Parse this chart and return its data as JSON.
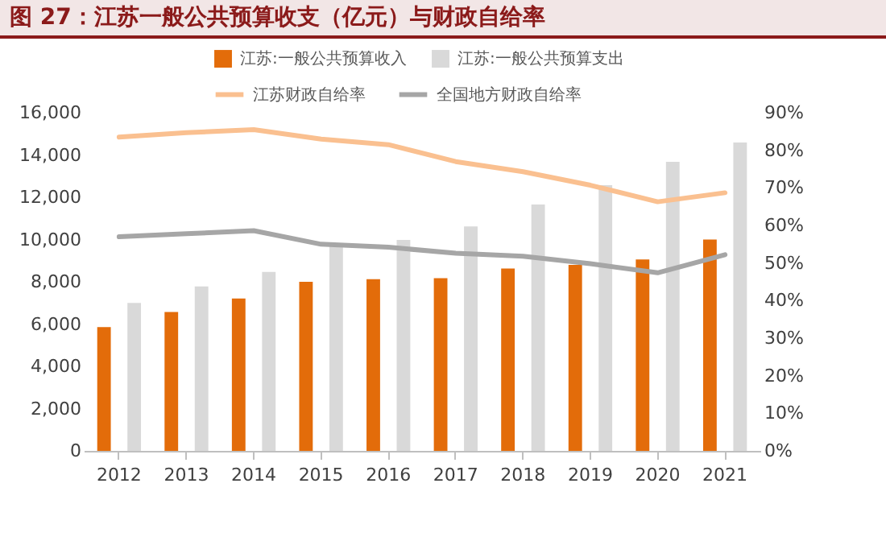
{
  "chart_data": {
    "type": "bar",
    "title": "图 27：江苏一般公共预算收支（亿元）与财政自给率",
    "categories": [
      "2012",
      "2013",
      "2014",
      "2015",
      "2016",
      "2017",
      "2018",
      "2019",
      "2020",
      "2021"
    ],
    "series": [
      {
        "name": "江苏:一般公共预算收入",
        "color": "#e36c0a",
        "values": [
          5860,
          6570,
          7210,
          8000,
          8120,
          8170,
          8630,
          8800,
          9060,
          10000
        ]
      },
      {
        "name": "江苏:一般公共预算支出",
        "color": "#d9d9d9",
        "values": [
          7000,
          7780,
          8470,
          9800,
          9980,
          10620,
          11660,
          12570,
          13680,
          14590
        ]
      },
      {
        "name": "江苏财政自给率",
        "type": "line",
        "axis": "y2",
        "color": "#fac090",
        "values": [
          83.5,
          84.7,
          85.5,
          83,
          81.5,
          77,
          74.3,
          70.7,
          66.3,
          68.7
        ]
      },
      {
        "name": "全国地方财政自给率",
        "type": "line",
        "axis": "y2",
        "color": "#a6a6a6",
        "values": [
          57,
          57.8,
          58.6,
          55,
          54.2,
          52.6,
          51.8,
          49.8,
          47.4,
          52.2
        ]
      }
    ],
    "ylim": [
      0,
      16000
    ],
    "yticks": [
      {
        "value": 0,
        "label": "0"
      },
      {
        "value": 2000,
        "label": "2,000"
      },
      {
        "value": 4000,
        "label": "4,000"
      },
      {
        "value": 6000,
        "label": "6,000"
      },
      {
        "value": 8000,
        "label": "8,000"
      },
      {
        "value": 10000,
        "label": "10,000"
      },
      {
        "value": 12000,
        "label": "12,000"
      },
      {
        "value": 14000,
        "label": "14,000"
      },
      {
        "value": 16000,
        "label": "16,000"
      }
    ],
    "y2lim": [
      0,
      90
    ],
    "y2ticks": [
      {
        "value": 0,
        "label": "0%"
      },
      {
        "value": 10,
        "label": "10%"
      },
      {
        "value": 20,
        "label": "20%"
      },
      {
        "value": 30,
        "label": "30%"
      },
      {
        "value": 40,
        "label": "40%"
      },
      {
        "value": 50,
        "label": "50%"
      },
      {
        "value": 60,
        "label": "60%"
      },
      {
        "value": 70,
        "label": "70%"
      },
      {
        "value": 80,
        "label": "80%"
      },
      {
        "value": 90,
        "label": "90%"
      }
    ],
    "legend": "top"
  }
}
